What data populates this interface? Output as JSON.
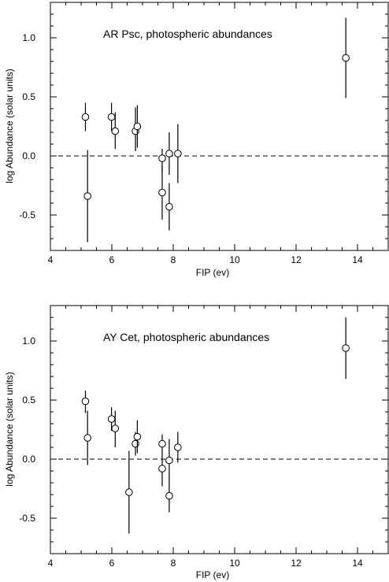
{
  "chart_data": [
    {
      "type": "scatter",
      "title": "AR Psc, photospheric abundances",
      "xlabel": "FIP (ev)",
      "ylabel": "log Abundance (solar units)",
      "xlim": [
        4,
        15
      ],
      "ylim": [
        -0.8,
        1.3
      ],
      "xticks": [
        4,
        6,
        8,
        10,
        12,
        14
      ],
      "yticks": [
        -0.5,
        0.0,
        0.5,
        1.0
      ],
      "xtick_labels": [
        "4",
        "6",
        "8",
        "10",
        "12",
        "14"
      ],
      "ytick_labels": [
        "-0.5",
        "0.0",
        "0.5",
        "1.0"
      ],
      "reference_line": {
        "y": 0.0,
        "style": "dashed"
      },
      "grid": false,
      "points": [
        {
          "x": 5.14,
          "y": 0.33,
          "ylo": 0.21,
          "yhi": 0.45
        },
        {
          "x": 5.21,
          "y": -0.34,
          "ylo": -0.73,
          "yhi": 0.05
        },
        {
          "x": 5.99,
          "y": 0.33,
          "ylo": 0.21,
          "yhi": 0.45
        },
        {
          "x": 6.11,
          "y": 0.21,
          "ylo": 0.06,
          "yhi": 0.37
        },
        {
          "x": 6.77,
          "y": 0.21,
          "ylo": 0.04,
          "yhi": 0.41
        },
        {
          "x": 6.83,
          "y": 0.25,
          "ylo": 0.07,
          "yhi": 0.43
        },
        {
          "x": 7.64,
          "y": -0.02,
          "ylo": -0.14,
          "yhi": 0.06
        },
        {
          "x": 7.64,
          "y": -0.31,
          "ylo": -0.54,
          "yhi": -0.08
        },
        {
          "x": 7.87,
          "y": 0.02,
          "ylo": -0.16,
          "yhi": 0.2
        },
        {
          "x": 7.87,
          "y": -0.43,
          "ylo": -0.63,
          "yhi": -0.23
        },
        {
          "x": 8.15,
          "y": 0.02,
          "ylo": -0.23,
          "yhi": 0.27
        },
        {
          "x": 13.62,
          "y": 0.83,
          "ylo": 0.49,
          "yhi": 1.17
        }
      ]
    },
    {
      "type": "scatter",
      "title": "AY Cet, photospheric abundances",
      "xlabel": "FIP (ev)",
      "ylabel": "log Abundance (solar units)",
      "xlim": [
        4,
        15
      ],
      "ylim": [
        -0.8,
        1.3
      ],
      "xticks": [
        4,
        6,
        8,
        10,
        12,
        14
      ],
      "yticks": [
        -0.5,
        0.0,
        0.5,
        1.0
      ],
      "xtick_labels": [
        "4",
        "6",
        "8",
        "10",
        "12",
        "14"
      ],
      "ytick_labels": [
        "-0.5",
        "0.0",
        "0.5",
        "1.0"
      ],
      "reference_line": {
        "y": 0.0,
        "style": "dashed"
      },
      "grid": false,
      "points": [
        {
          "x": 5.14,
          "y": 0.49,
          "ylo": 0.39,
          "yhi": 0.58
        },
        {
          "x": 5.21,
          "y": 0.18,
          "ylo": -0.05,
          "yhi": 0.41
        },
        {
          "x": 5.99,
          "y": 0.34,
          "ylo": 0.24,
          "yhi": 0.44
        },
        {
          "x": 6.11,
          "y": 0.26,
          "ylo": 0.1,
          "yhi": 0.41
        },
        {
          "x": 6.56,
          "y": -0.28,
          "ylo": -0.63,
          "yhi": 0.07
        },
        {
          "x": 6.77,
          "y": 0.13,
          "ylo": 0.03,
          "yhi": 0.23
        },
        {
          "x": 6.83,
          "y": 0.19,
          "ylo": 0.05,
          "yhi": 0.33
        },
        {
          "x": 7.64,
          "y": 0.13,
          "ylo": 0.05,
          "yhi": 0.21
        },
        {
          "x": 7.64,
          "y": -0.08,
          "ylo": -0.23,
          "yhi": 0.06
        },
        {
          "x": 7.87,
          "y": -0.01,
          "ylo": -0.18,
          "yhi": 0.17
        },
        {
          "x": 7.87,
          "y": -0.31,
          "ylo": -0.45,
          "yhi": -0.17
        },
        {
          "x": 8.15,
          "y": 0.1,
          "ylo": -0.03,
          "yhi": 0.23
        },
        {
          "x": 13.62,
          "y": 0.94,
          "ylo": 0.68,
          "yhi": 1.2
        }
      ]
    }
  ]
}
